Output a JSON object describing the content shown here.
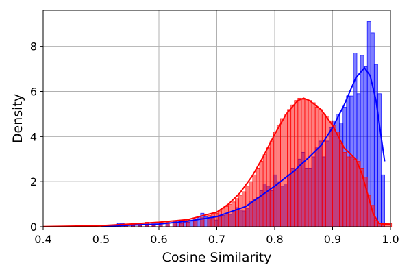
{
  "chart_data": {
    "type": "bar",
    "title": "",
    "xlabel": "Cosine Similarity",
    "ylabel": "Density",
    "xlim": [
      0.4,
      1.0
    ],
    "ylim": [
      0,
      9.6
    ],
    "x_ticks": [
      "0.4",
      "0.5",
      "0.6",
      "0.7",
      "0.8",
      "0.9",
      "1.0"
    ],
    "y_ticks": [
      "0",
      "2",
      "4",
      "6",
      "8"
    ],
    "grid": true,
    "bin_width": 0.006,
    "series": [
      {
        "color": "#0000ff",
        "bins": [
          [
            0.456,
            0.03
          ],
          [
            0.528,
            0.15
          ],
          [
            0.534,
            0.15
          ],
          [
            0.54,
            0.08
          ],
          [
            0.552,
            0.05
          ],
          [
            0.564,
            0.05
          ],
          [
            0.576,
            0.05
          ],
          [
            0.588,
            0.05
          ],
          [
            0.6,
            0.08
          ],
          [
            0.612,
            0.1
          ],
          [
            0.624,
            0.25
          ],
          [
            0.63,
            0.2
          ],
          [
            0.636,
            0.15
          ],
          [
            0.642,
            0.2
          ],
          [
            0.648,
            0.2
          ],
          [
            0.654,
            0.25
          ],
          [
            0.66,
            0.3
          ],
          [
            0.666,
            0.4
          ],
          [
            0.672,
            0.6
          ],
          [
            0.678,
            0.45
          ],
          [
            0.684,
            0.35
          ],
          [
            0.69,
            0.4
          ],
          [
            0.696,
            0.3
          ],
          [
            0.702,
            0.45
          ],
          [
            0.708,
            0.5
          ],
          [
            0.714,
            0.6
          ],
          [
            0.72,
            0.55
          ],
          [
            0.726,
            0.7
          ],
          [
            0.732,
            0.85
          ],
          [
            0.738,
            0.75
          ],
          [
            0.744,
            0.7
          ],
          [
            0.75,
            0.8
          ],
          [
            0.756,
            1.1
          ],
          [
            0.762,
            1.2
          ],
          [
            0.768,
            1.3
          ],
          [
            0.774,
            1.6
          ],
          [
            0.78,
            1.9
          ],
          [
            0.786,
            1.8
          ],
          [
            0.792,
            1.6
          ],
          [
            0.798,
            2.3
          ],
          [
            0.804,
            2.0
          ],
          [
            0.81,
            1.8
          ],
          [
            0.816,
            1.9
          ],
          [
            0.822,
            2.3
          ],
          [
            0.828,
            2.6
          ],
          [
            0.834,
            2.5
          ],
          [
            0.84,
            3.0
          ],
          [
            0.846,
            3.3
          ],
          [
            0.852,
            2.6
          ],
          [
            0.858,
            2.6
          ],
          [
            0.864,
            3.1
          ],
          [
            0.87,
            3.5
          ],
          [
            0.876,
            3.8
          ],
          [
            0.882,
            3.1
          ],
          [
            0.888,
            3.8
          ],
          [
            0.894,
            4.4
          ],
          [
            0.9,
            4.7
          ],
          [
            0.906,
            5.0
          ],
          [
            0.912,
            4.6
          ],
          [
            0.918,
            5.3
          ],
          [
            0.924,
            5.8
          ],
          [
            0.93,
            5.8
          ],
          [
            0.936,
            7.7
          ],
          [
            0.942,
            5.9
          ],
          [
            0.948,
            7.6
          ],
          [
            0.954,
            7.1
          ],
          [
            0.96,
            9.1
          ],
          [
            0.966,
            8.6
          ],
          [
            0.972,
            7.2
          ],
          [
            0.978,
            5.9
          ],
          [
            0.984,
            2.3
          ]
        ],
        "kde": [
          [
            0.5,
            0.02
          ],
          [
            0.55,
            0.07
          ],
          [
            0.6,
            0.12
          ],
          [
            0.65,
            0.25
          ],
          [
            0.7,
            0.45
          ],
          [
            0.75,
            0.9
          ],
          [
            0.8,
            1.8
          ],
          [
            0.83,
            2.4
          ],
          [
            0.86,
            3.1
          ],
          [
            0.88,
            3.6
          ],
          [
            0.9,
            4.4
          ],
          [
            0.92,
            5.4
          ],
          [
            0.94,
            6.6
          ],
          [
            0.955,
            7.05
          ],
          [
            0.965,
            6.7
          ],
          [
            0.975,
            5.6
          ],
          [
            0.99,
            2.9
          ]
        ]
      },
      {
        "color": "#ff0000",
        "bins": [
          [
            0.456,
            0.06
          ],
          [
            0.504,
            0.05
          ],
          [
            0.516,
            0.05
          ],
          [
            0.528,
            0.1
          ],
          [
            0.54,
            0.1
          ],
          [
            0.552,
            0.15
          ],
          [
            0.564,
            0.15
          ],
          [
            0.576,
            0.2
          ],
          [
            0.588,
            0.2
          ],
          [
            0.6,
            0.2
          ],
          [
            0.612,
            0.2
          ],
          [
            0.624,
            0.25
          ],
          [
            0.636,
            0.25
          ],
          [
            0.648,
            0.3
          ],
          [
            0.66,
            0.35
          ],
          [
            0.672,
            0.4
          ],
          [
            0.684,
            0.5
          ],
          [
            0.69,
            0.55
          ],
          [
            0.696,
            0.6
          ],
          [
            0.702,
            0.7
          ],
          [
            0.708,
            0.8
          ],
          [
            0.714,
            0.9
          ],
          [
            0.72,
            1.0
          ],
          [
            0.726,
            1.1
          ],
          [
            0.732,
            1.25
          ],
          [
            0.738,
            1.4
          ],
          [
            0.744,
            1.55
          ],
          [
            0.75,
            1.8
          ],
          [
            0.756,
            2.0
          ],
          [
            0.762,
            2.3
          ],
          [
            0.768,
            2.6
          ],
          [
            0.774,
            2.9
          ],
          [
            0.78,
            3.2
          ],
          [
            0.786,
            3.5
          ],
          [
            0.792,
            3.8
          ],
          [
            0.798,
            4.2
          ],
          [
            0.804,
            4.5
          ],
          [
            0.81,
            4.8
          ],
          [
            0.816,
            5.0
          ],
          [
            0.822,
            5.2
          ],
          [
            0.828,
            5.4
          ],
          [
            0.834,
            5.6
          ],
          [
            0.84,
            5.7
          ],
          [
            0.846,
            5.65
          ],
          [
            0.852,
            5.65
          ],
          [
            0.858,
            5.6
          ],
          [
            0.864,
            5.5
          ],
          [
            0.87,
            5.3
          ],
          [
            0.876,
            5.2
          ],
          [
            0.882,
            5.0
          ],
          [
            0.888,
            4.9
          ],
          [
            0.894,
            4.7
          ],
          [
            0.9,
            4.5
          ],
          [
            0.906,
            4.2
          ],
          [
            0.912,
            3.7
          ],
          [
            0.918,
            3.3
          ],
          [
            0.924,
            3.1
          ],
          [
            0.93,
            3.1
          ],
          [
            0.936,
            3.0
          ],
          [
            0.942,
            2.9
          ],
          [
            0.948,
            2.6
          ],
          [
            0.954,
            2.2
          ],
          [
            0.96,
            1.4
          ],
          [
            0.966,
            0.95
          ],
          [
            0.972,
            0.3
          ],
          [
            0.978,
            0.15
          ],
          [
            0.984,
            0.1
          ],
          [
            0.99,
            0.15
          ],
          [
            0.996,
            0.15
          ]
        ],
        "kde": [
          [
            0.4,
            0.01
          ],
          [
            0.5,
            0.05
          ],
          [
            0.55,
            0.12
          ],
          [
            0.6,
            0.2
          ],
          [
            0.65,
            0.32
          ],
          [
            0.7,
            0.65
          ],
          [
            0.72,
            1.0
          ],
          [
            0.74,
            1.5
          ],
          [
            0.76,
            2.2
          ],
          [
            0.78,
            3.1
          ],
          [
            0.8,
            4.1
          ],
          [
            0.82,
            5.0
          ],
          [
            0.84,
            5.6
          ],
          [
            0.85,
            5.7
          ],
          [
            0.86,
            5.6
          ],
          [
            0.88,
            5.2
          ],
          [
            0.9,
            4.5
          ],
          [
            0.92,
            3.5
          ],
          [
            0.94,
            3.0
          ],
          [
            0.95,
            2.4
          ],
          [
            0.96,
            1.5
          ],
          [
            0.97,
            0.6
          ],
          [
            0.98,
            0.15
          ],
          [
            1.0,
            0.1
          ]
        ]
      }
    ]
  }
}
